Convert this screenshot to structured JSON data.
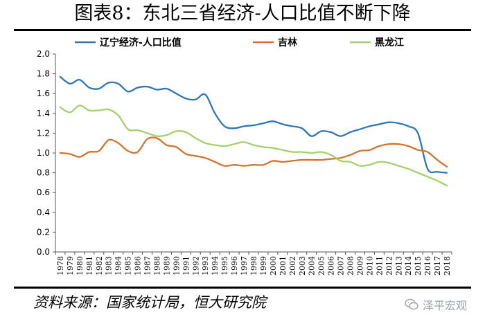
{
  "title": "图表8：东北三省经济-人口比值不断下降",
  "source": "资料来源：国家统计局，恒大研究院",
  "watermark": {
    "text": "泽平宏观",
    "icon": "wechat-icon"
  },
  "chart_data": {
    "type": "line",
    "x": [
      1978,
      1979,
      1980,
      1981,
      1982,
      1983,
      1984,
      1985,
      1986,
      1987,
      1988,
      1989,
      1990,
      1991,
      1992,
      1993,
      1994,
      1995,
      1996,
      1997,
      1998,
      1999,
      2000,
      2001,
      2002,
      2003,
      2004,
      2005,
      2006,
      2007,
      2008,
      2009,
      2010,
      2011,
      2012,
      2013,
      2014,
      2015,
      2016,
      2017,
      2018
    ],
    "ylim": [
      0.0,
      2.0
    ],
    "yticks": [
      "0.0",
      "0.2",
      "0.4",
      "0.6",
      "0.8",
      "1.0",
      "1.2",
      "1.4",
      "1.6",
      "1.8",
      "2.0"
    ],
    "legend_position": "top",
    "grid": false,
    "series": [
      {
        "name": "辽宁经济-人口比值",
        "color": "#2e75b6",
        "values": [
          1.77,
          1.7,
          1.74,
          1.66,
          1.65,
          1.71,
          1.7,
          1.62,
          1.66,
          1.67,
          1.64,
          1.65,
          1.6,
          1.55,
          1.54,
          1.59,
          1.4,
          1.27,
          1.25,
          1.27,
          1.28,
          1.3,
          1.32,
          1.29,
          1.27,
          1.25,
          1.17,
          1.22,
          1.21,
          1.17,
          1.21,
          1.24,
          1.27,
          1.29,
          1.31,
          1.3,
          1.27,
          1.2,
          0.84,
          0.81,
          0.8
        ]
      },
      {
        "name": "吉林",
        "color": "#d2722f",
        "values": [
          1.0,
          0.99,
          0.96,
          1.01,
          1.02,
          1.13,
          1.1,
          1.02,
          1.01,
          1.14,
          1.15,
          1.08,
          1.06,
          0.99,
          0.97,
          0.95,
          0.91,
          0.87,
          0.88,
          0.87,
          0.88,
          0.88,
          0.92,
          0.91,
          0.92,
          0.93,
          0.93,
          0.93,
          0.94,
          0.95,
          0.98,
          1.02,
          1.03,
          1.07,
          1.09,
          1.09,
          1.07,
          1.03,
          1.01,
          0.93,
          0.86
        ]
      },
      {
        "name": "黑龙江",
        "color": "#a5cf6b",
        "values": [
          1.46,
          1.41,
          1.48,
          1.43,
          1.43,
          1.44,
          1.38,
          1.24,
          1.23,
          1.2,
          1.17,
          1.18,
          1.22,
          1.21,
          1.15,
          1.1,
          1.08,
          1.07,
          1.09,
          1.11,
          1.08,
          1.06,
          1.05,
          1.03,
          1.01,
          1.01,
          1.0,
          1.01,
          0.98,
          0.92,
          0.91,
          0.87,
          0.88,
          0.91,
          0.9,
          0.87,
          0.84,
          0.8,
          0.76,
          0.72,
          0.67
        ]
      }
    ]
  }
}
